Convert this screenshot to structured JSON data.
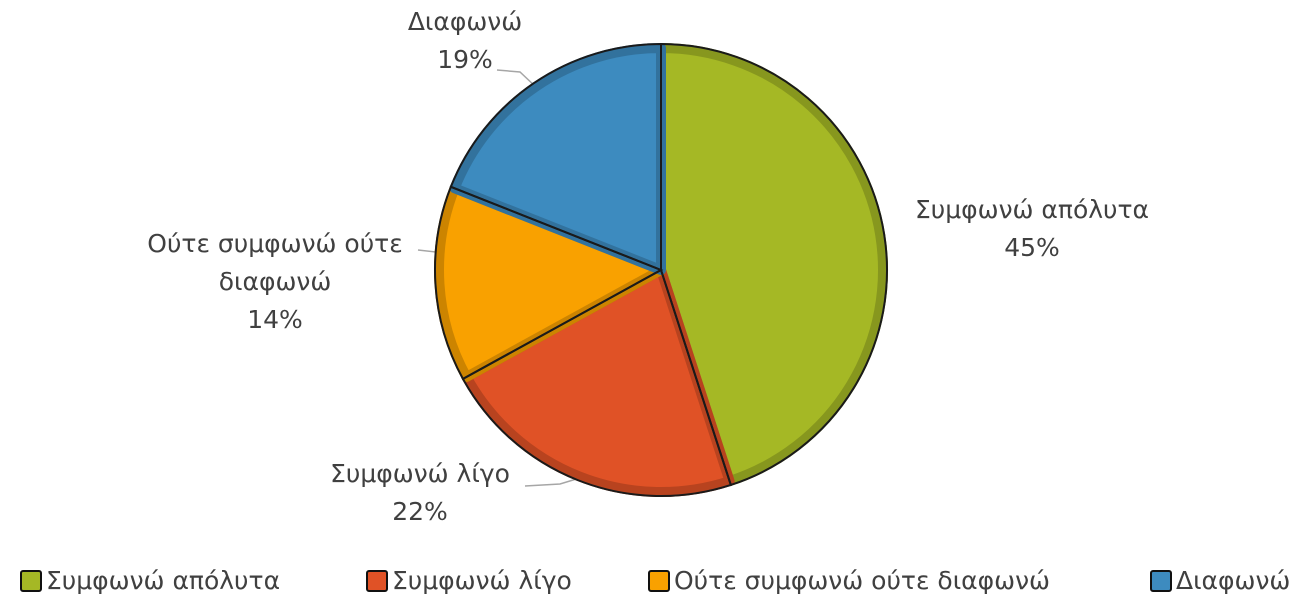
{
  "chart_data": {
    "type": "pie",
    "categories": [
      "Συμφωνώ απόλυτα",
      "Συμφωνώ λίγο",
      "Ούτε συμφωνώ ούτε διαφωνώ",
      "Διαφωνώ"
    ],
    "values": [
      45,
      22,
      14,
      19
    ],
    "value_labels": [
      "45%",
      "22%",
      "14%",
      "19%"
    ],
    "colors": [
      "#a5b825",
      "#e05226",
      "#f9a100",
      "#3d8bbf"
    ],
    "legend": "bottom"
  }
}
